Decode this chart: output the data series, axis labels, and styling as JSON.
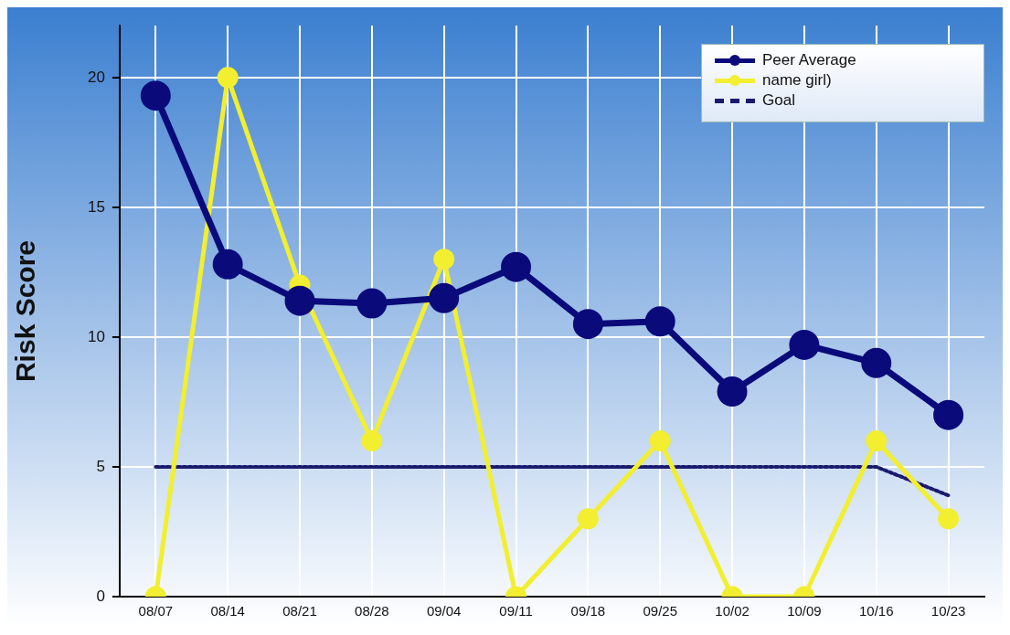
{
  "chart_data": {
    "type": "line",
    "ylabel": "Risk Score",
    "categories": [
      "08/07",
      "08/14",
      "08/21",
      "08/28",
      "09/04",
      "09/11",
      "09/18",
      "09/25",
      "10/02",
      "10/09",
      "10/16",
      "10/23"
    ],
    "series": [
      {
        "name": "Peer Average",
        "color": "#0a0a7a",
        "marker": "circle",
        "values": [
          19.3,
          12.8,
          11.4,
          11.3,
          11.5,
          12.7,
          10.5,
          10.6,
          7.9,
          9.7,
          9.0,
          7.0
        ]
      },
      {
        "name": "name girl)",
        "color": "#f2ee30",
        "marker": "circle",
        "values": [
          0,
          20,
          12,
          6,
          13,
          0,
          3,
          6,
          0,
          0,
          6,
          3
        ]
      },
      {
        "name": "Goal",
        "color": "#1a1a6e",
        "marker": "none",
        "line_style": "dashed",
        "values": [
          5,
          5,
          5,
          5,
          5,
          5,
          5,
          5,
          5,
          5,
          5,
          3.9
        ]
      }
    ],
    "ylim": [
      0,
      22
    ],
    "yticks": [
      0,
      5,
      10,
      15,
      20
    ],
    "grid": true,
    "legend": "top right"
  }
}
